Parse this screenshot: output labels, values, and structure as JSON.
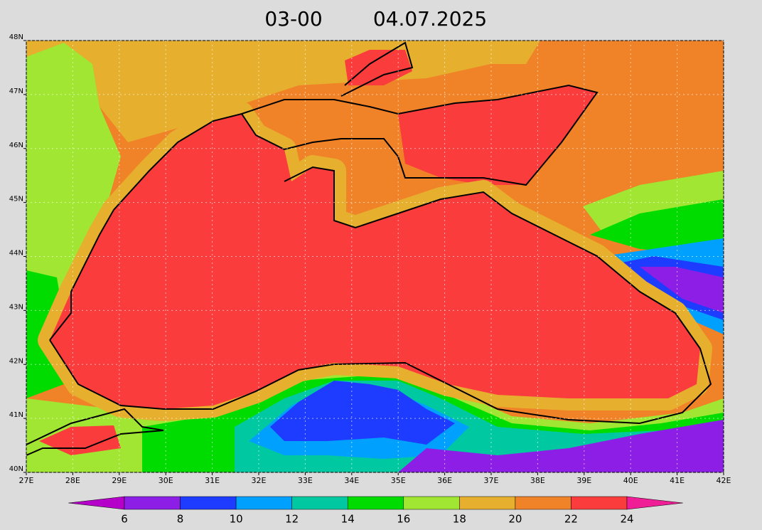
{
  "title": {
    "time": "03-00",
    "date": "04.07.2025"
  },
  "map": {
    "xlim": [
      27,
      42
    ],
    "ylim": [
      40,
      48
    ],
    "xticks": [
      {
        "value": 27,
        "label": "27E"
      },
      {
        "value": 28,
        "label": "28E"
      },
      {
        "value": 29,
        "label": "29E"
      },
      {
        "value": 30,
        "label": "30E"
      },
      {
        "value": 31,
        "label": "31E"
      },
      {
        "value": 32,
        "label": "32E"
      },
      {
        "value": 33,
        "label": "33E"
      },
      {
        "value": 34,
        "label": "34E"
      },
      {
        "value": 35,
        "label": "35E"
      },
      {
        "value": 36,
        "label": "36E"
      },
      {
        "value": 37,
        "label": "37E"
      },
      {
        "value": 38,
        "label": "38E"
      },
      {
        "value": 39,
        "label": "39E"
      },
      {
        "value": 40,
        "label": "40E"
      },
      {
        "value": 41,
        "label": "41E"
      },
      {
        "value": 42,
        "label": "42E"
      }
    ],
    "yticks": [
      {
        "value": 40,
        "label": "40N"
      },
      {
        "value": 41,
        "label": "41N"
      },
      {
        "value": 42,
        "label": "42N"
      },
      {
        "value": 43,
        "label": "43N"
      },
      {
        "value": 44,
        "label": "44N"
      },
      {
        "value": 45,
        "label": "45N"
      },
      {
        "value": 46,
        "label": "46N"
      },
      {
        "value": 47,
        "label": "47N"
      },
      {
        "value": 48,
        "label": "48N"
      }
    ],
    "grid": true
  },
  "colorbar": {
    "levels": [
      6,
      8,
      10,
      12,
      14,
      16,
      18,
      20,
      22,
      24
    ],
    "colors": [
      "#b400c8",
      "#8c1ee6",
      "#1e3cff",
      "#00a0ff",
      "#00c8a0",
      "#00dc00",
      "#a0e632",
      "#e6af2d",
      "#f08228",
      "#fa3c3c",
      "#f01e96"
    ]
  }
}
